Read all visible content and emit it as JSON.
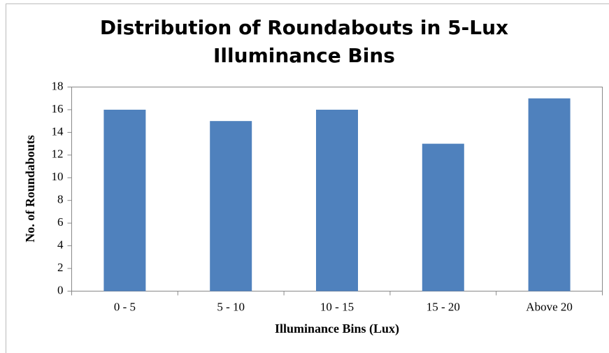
{
  "chart_data": {
    "type": "bar",
    "title": "Distribution of Roundabouts in 5-Lux Illuminance Bins",
    "xlabel": "Illuminance Bins (Lux)",
    "ylabel": "No. of Roundabouts",
    "categories": [
      "0 - 5",
      "5 - 10",
      "10 - 15",
      "15 - 20",
      "Above 20"
    ],
    "values": [
      16,
      15,
      16,
      13,
      17
    ],
    "color": "#4f81bd",
    "ylim": [
      0,
      18
    ],
    "yticks": [
      0,
      2,
      4,
      6,
      8,
      10,
      12,
      14,
      16,
      18
    ],
    "grid": false
  }
}
